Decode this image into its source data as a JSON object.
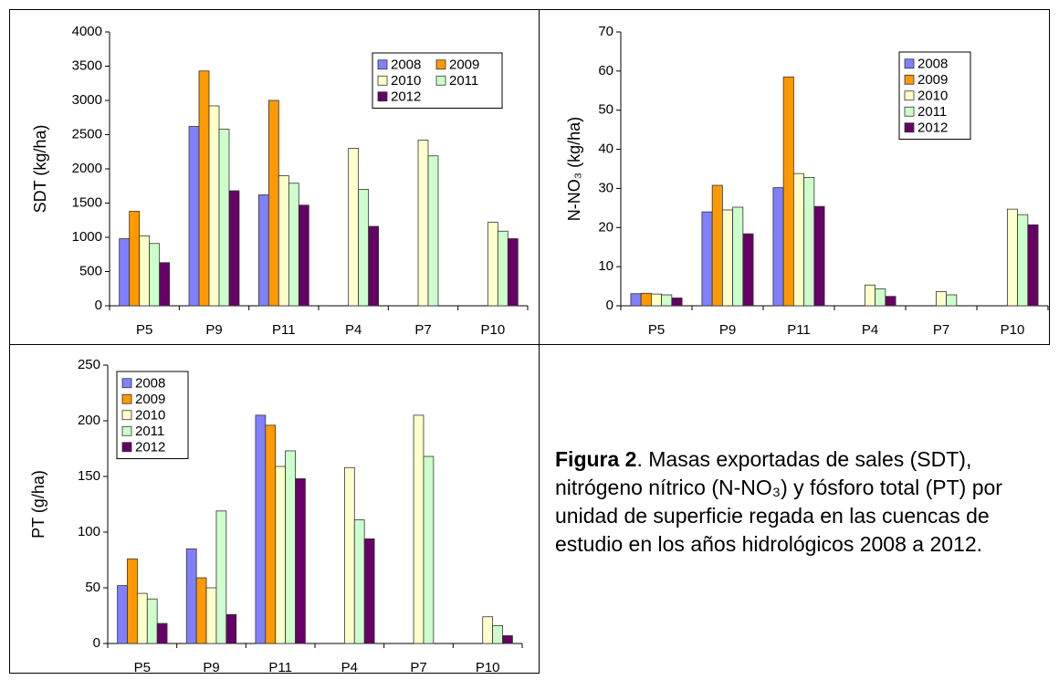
{
  "chart_data": [
    {
      "type": "bar",
      "ylabel": "SDT (kg/ha)",
      "categories": [
        "P5",
        "P9",
        "P11",
        "P4",
        "P7",
        "P10"
      ],
      "series": [
        {
          "name": "2008",
          "color": "#8080ff",
          "values": [
            980,
            2620,
            1620,
            null,
            null,
            null
          ]
        },
        {
          "name": "2009",
          "color": "#ff9900",
          "values": [
            1380,
            3430,
            3000,
            null,
            null,
            null
          ]
        },
        {
          "name": "2010",
          "color": "#ffffcc",
          "values": [
            1020,
            2920,
            1900,
            2300,
            2420,
            1220
          ]
        },
        {
          "name": "2011",
          "color": "#ccffcc",
          "values": [
            910,
            2580,
            1790,
            1700,
            2190,
            1090
          ]
        },
        {
          "name": "2012",
          "color": "#660066",
          "values": [
            630,
            1680,
            1470,
            1160,
            null,
            980
          ]
        }
      ],
      "ylim": [
        0,
        4000
      ],
      "yticks": [
        0,
        500,
        1000,
        1500,
        2000,
        2500,
        3000,
        3500,
        4000
      ],
      "legend": "top-right"
    },
    {
      "type": "bar",
      "ylabel": "N-NO₃ (kg/ha)",
      "categories": [
        "P5",
        "P9",
        "P11",
        "P4",
        "P7",
        "P10"
      ],
      "series": [
        {
          "name": "2008",
          "color": "#8080ff",
          "values": [
            3.1,
            24,
            30.2,
            null,
            null,
            null
          ]
        },
        {
          "name": "2009",
          "color": "#ff9900",
          "values": [
            3.2,
            30.8,
            58.5,
            null,
            null,
            null
          ]
        },
        {
          "name": "2010",
          "color": "#ffffcc",
          "values": [
            3.0,
            24.5,
            33.8,
            5.3,
            3.6,
            24.7
          ]
        },
        {
          "name": "2011",
          "color": "#ccffcc",
          "values": [
            2.8,
            25.2,
            32.8,
            4.3,
            2.8,
            23.3
          ]
        },
        {
          "name": "2012",
          "color": "#660066",
          "values": [
            2.0,
            18.4,
            25.4,
            2.4,
            null,
            20.7
          ]
        }
      ],
      "ylim": [
        0,
        70
      ],
      "yticks": [
        0,
        10,
        20,
        30,
        40,
        50,
        60,
        70
      ],
      "legend": "top-right"
    },
    {
      "type": "bar",
      "ylabel": "PT (g/ha)",
      "categories": [
        "P5",
        "P9",
        "P11",
        "P4",
        "P7",
        "P10"
      ],
      "series": [
        {
          "name": "2008",
          "color": "#8080ff",
          "values": [
            52,
            85,
            205,
            null,
            null,
            null
          ]
        },
        {
          "name": "2009",
          "color": "#ff9900",
          "values": [
            76,
            59,
            196,
            null,
            null,
            null
          ]
        },
        {
          "name": "2010",
          "color": "#ffffcc",
          "values": [
            45,
            50,
            159,
            158,
            205,
            24
          ]
        },
        {
          "name": "2011",
          "color": "#ccffcc",
          "values": [
            40,
            119,
            173,
            111,
            168,
            16
          ]
        },
        {
          "name": "2012",
          "color": "#660066",
          "values": [
            18,
            26,
            148,
            94,
            null,
            7
          ]
        }
      ],
      "ylim": [
        0,
        250
      ],
      "yticks": [
        0,
        50,
        100,
        150,
        200,
        250
      ],
      "legend": "top-left"
    }
  ],
  "caption": {
    "label": "Figura 2",
    "text": ". Masas exportadas de sales (SDT), nitrógeno nítrico (N-NO₃) y fósforo total (PT) por unidad de superficie regada en las cuencas de estudio en los años hidrológicos 2008 a 2012."
  }
}
